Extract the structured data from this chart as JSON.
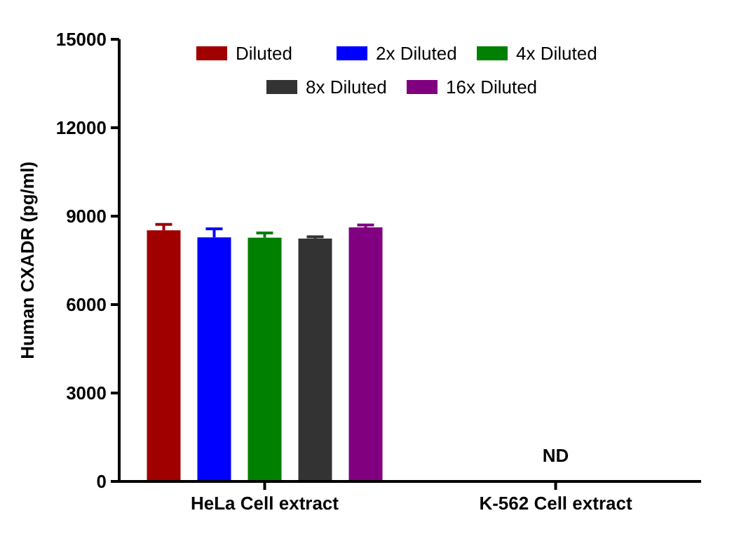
{
  "chart_data": {
    "type": "bar",
    "ylabel": "Human CXADR (pg/ml)",
    "categories": [
      "HeLa Cell extract",
      "K-562 Cell extract"
    ],
    "series": [
      {
        "name": "Diluted",
        "color": "#a00000",
        "values": [
          8520,
          null
        ],
        "errors": [
          200,
          null
        ]
      },
      {
        "name": "2x Diluted",
        "color": "#0000ff",
        "values": [
          8280,
          null
        ],
        "errors": [
          290,
          null
        ]
      },
      {
        "name": "4x Diluted",
        "color": "#008000",
        "values": [
          8270,
          null
        ],
        "errors": [
          160,
          null
        ]
      },
      {
        "name": "8x Diluted",
        "color": "#333333",
        "values": [
          8240,
          null
        ],
        "errors": [
          60,
          null
        ]
      },
      {
        "name": "16x Diluted",
        "color": "#800080",
        "values": [
          8620,
          null
        ],
        "errors": [
          80,
          null
        ]
      }
    ],
    "ylim": [
      0,
      15000
    ],
    "yticks": [
      0,
      3000,
      6000,
      9000,
      12000,
      15000
    ],
    "grid": false,
    "legend": "top",
    "annotations": [
      "ND"
    ]
  }
}
